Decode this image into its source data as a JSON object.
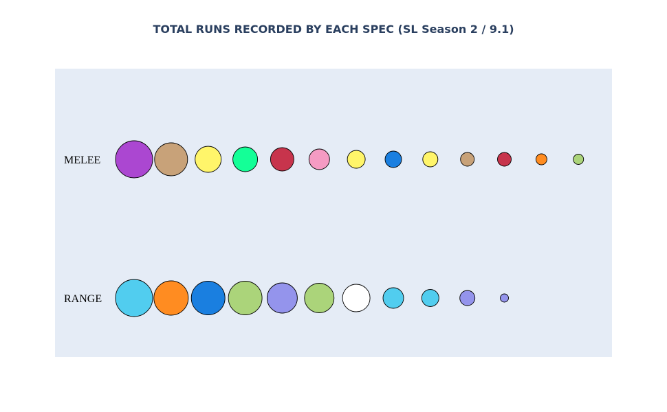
{
  "chart_data": {
    "type": "scatter",
    "title": "TOTAL RUNS RECORDED BY EACH SPEC (SL Season 2 / 9.1)",
    "xlabel": "",
    "ylabel": "",
    "grid": false,
    "legend": "none",
    "categories": [
      "MELEE",
      "RANGE"
    ],
    "series": [
      {
        "category": "MELEE",
        "points": [
          {
            "rank": 1,
            "size": 27,
            "color": "#ab47d1"
          },
          {
            "rank": 2,
            "size": 24,
            "color": "#c8a279"
          },
          {
            "rank": 3,
            "size": 19,
            "color": "#fff56a"
          },
          {
            "rank": 4,
            "size": 18,
            "color": "#14ff97"
          },
          {
            "rank": 5,
            "size": 17,
            "color": "#c7344c"
          },
          {
            "rank": 6,
            "size": 15,
            "color": "#f59bc3"
          },
          {
            "rank": 7,
            "size": 13,
            "color": "#fff56a"
          },
          {
            "rank": 8,
            "size": 12,
            "color": "#1a7fe0"
          },
          {
            "rank": 9,
            "size": 11,
            "color": "#fff56a"
          },
          {
            "rank": 10,
            "size": 10,
            "color": "#c8a279"
          },
          {
            "rank": 11,
            "size": 10,
            "color": "#c7344c"
          },
          {
            "rank": 12,
            "size": 8,
            "color": "#ff8c21"
          },
          {
            "rank": 13,
            "size": 7.5,
            "color": "#abd47a"
          }
        ]
      },
      {
        "category": "RANGE",
        "points": [
          {
            "rank": 1,
            "size": 27,
            "color": "#51cdef"
          },
          {
            "rank": 2,
            "size": 25,
            "color": "#ff8c21"
          },
          {
            "rank": 3,
            "size": 24.5,
            "color": "#1a7fe0"
          },
          {
            "rank": 4,
            "size": 24.5,
            "color": "#abd47a"
          },
          {
            "rank": 5,
            "size": 22,
            "color": "#9494ec"
          },
          {
            "rank": 6,
            "size": 21.5,
            "color": "#abd47a"
          },
          {
            "rank": 7,
            "size": 20,
            "color": "#ffffff"
          },
          {
            "rank": 8,
            "size": 15,
            "color": "#51cdef"
          },
          {
            "rank": 9,
            "size": 12.5,
            "color": "#51cdef"
          },
          {
            "rank": 10,
            "size": 11,
            "color": "#9494ec"
          },
          {
            "rank": 11,
            "size": 6,
            "color": "#9494ec"
          }
        ]
      }
    ],
    "xlim": [
      0.5,
      13.5
    ]
  }
}
